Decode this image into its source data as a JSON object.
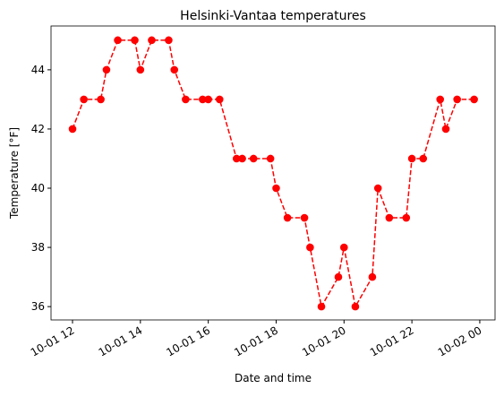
{
  "chart_data": {
    "type": "line",
    "title": "Helsinki-Vantaa temperatures",
    "x_label": "Date and time",
    "y_label": "Temperature [°F]",
    "x": [
      "10-01 12:00",
      "10-01 12:20",
      "10-01 12:50",
      "10-01 13:00",
      "10-01 13:20",
      "10-01 13:50",
      "10-01 14:00",
      "10-01 14:20",
      "10-01 14:50",
      "10-01 15:00",
      "10-01 15:20",
      "10-01 15:50",
      "10-01 16:00",
      "10-01 16:20",
      "10-01 16:50",
      "10-01 17:00",
      "10-01 17:20",
      "10-01 17:50",
      "10-01 18:00",
      "10-01 18:20",
      "10-01 18:50",
      "10-01 19:00",
      "10-01 19:20",
      "10-01 19:50",
      "10-01 20:00",
      "10-01 20:20",
      "10-01 20:50",
      "10-01 21:00",
      "10-01 21:20",
      "10-01 21:50",
      "10-01 22:00",
      "10-01 22:20",
      "10-01 22:50",
      "10-01 23:00",
      "10-01 23:20",
      "10-01 23:50"
    ],
    "series": [
      {
        "color": "#ff0000",
        "values": [
          42,
          43,
          43,
          44,
          45,
          45,
          44,
          45,
          45,
          44,
          43,
          43,
          43,
          43,
          41,
          41,
          41,
          41,
          40,
          39,
          39,
          38,
          36,
          37,
          38,
          36,
          37,
          40,
          39,
          39,
          41,
          41,
          43,
          42,
          43,
          43
        ]
      }
    ],
    "xlim": [
      "10-01 11:22",
      "10-02 00:27"
    ],
    "xticks": [
      "10-01 12",
      "10-01 14",
      "10-01 16",
      "10-01 18",
      "10-01 20",
      "10-01 22",
      "10-02 00"
    ],
    "ylim": [
      35.55,
      45.48
    ],
    "yticks": [
      36,
      38,
      40,
      42,
      44
    ]
  }
}
